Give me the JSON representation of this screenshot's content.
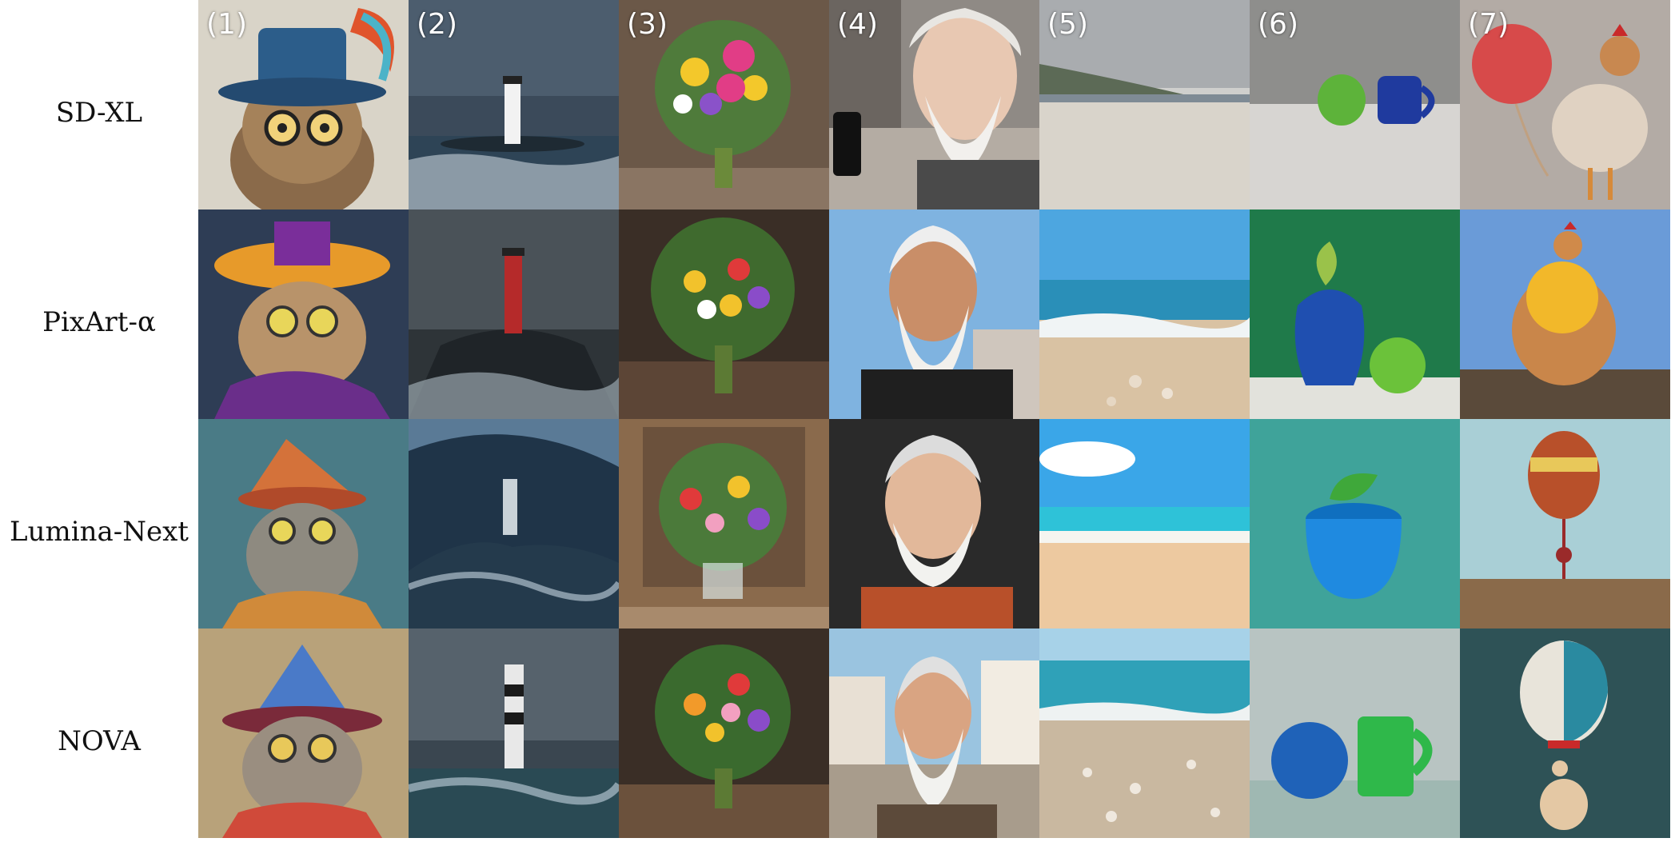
{
  "rows": [
    {
      "label": "SD-XL"
    },
    {
      "label": "PixArt-α"
    },
    {
      "label": "Lumina-Next"
    },
    {
      "label": "NOVA"
    }
  ],
  "columns": [
    {
      "number": "(1)"
    },
    {
      "number": "(2)"
    },
    {
      "number": "(3)"
    },
    {
      "number": "(4)"
    },
    {
      "number": "(5)"
    },
    {
      "number": "(6)"
    },
    {
      "number": "(7)"
    }
  ]
}
